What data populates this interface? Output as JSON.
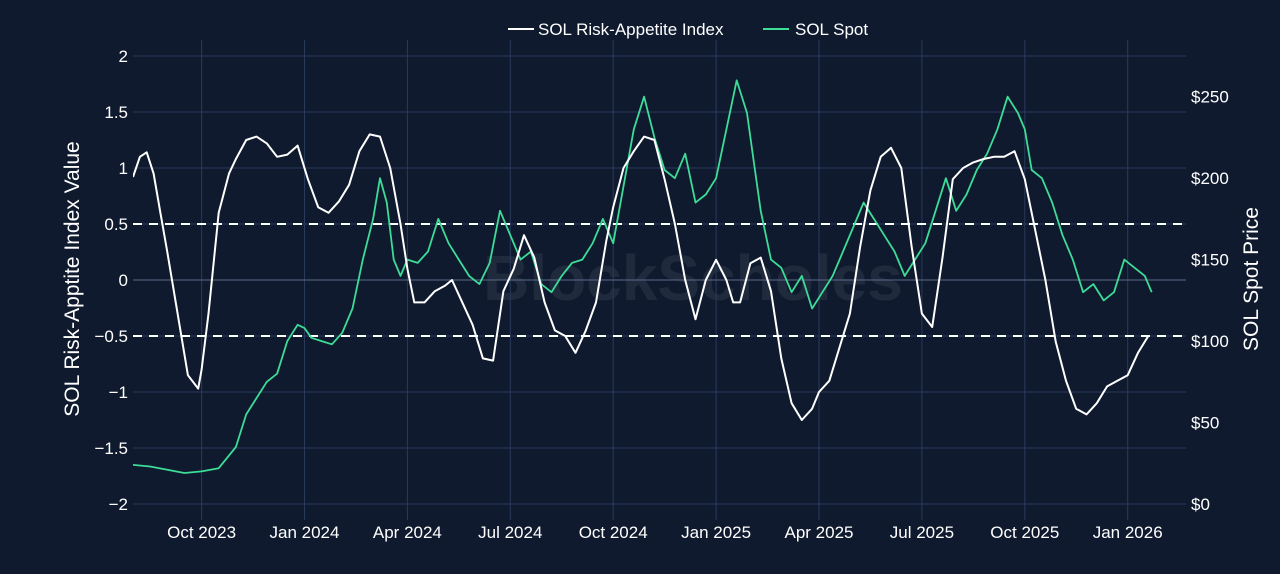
{
  "chart_data": {
    "type": "line",
    "watermark": "BlockScholes",
    "legend_position": "top-center",
    "x_ticks": [
      "Oct 2023",
      "Jan 2024",
      "Apr 2024",
      "Jul 2024",
      "Oct 2024",
      "Jan 2025",
      "Apr 2025",
      "Jul 2025",
      "Oct 2025",
      "Jan 2026"
    ],
    "x_tick_months": [
      3,
      6,
      9,
      12,
      15,
      18,
      21,
      24,
      27,
      30
    ],
    "x_range_months": [
      1.0,
      31.7
    ],
    "y_left": {
      "label": "SOL Risk-Apptite Index Value",
      "range": [
        -2,
        2
      ],
      "ticks": [
        2,
        1.5,
        1,
        0.5,
        0,
        -0.5,
        -1,
        -1.5,
        -2
      ],
      "tick_labels": [
        "2",
        "1.5",
        "1",
        "0.5",
        "0",
        "−0.5",
        "−1",
        "−1.5",
        "−2"
      ]
    },
    "y_right": {
      "label": "SOL Spot Price",
      "range": [
        0,
        275
      ],
      "ticks": [
        250,
        200,
        150,
        100,
        50,
        0
      ],
      "tick_labels": [
        "$250",
        "$200",
        "$150",
        "$100",
        "$50",
        "$0"
      ]
    },
    "reference_lines": [
      0.5,
      -0.5
    ],
    "series": [
      {
        "name": "SOL Risk-Appetite Index",
        "axis": "left",
        "color": "#ffffff",
        "x": [
          1.0,
          1.2,
          1.4,
          1.6,
          1.8,
          2.0,
          2.3,
          2.6,
          2.9,
          3.0,
          3.2,
          3.5,
          3.8,
          4.0,
          4.3,
          4.6,
          4.9,
          5.2,
          5.5,
          5.8,
          6.1,
          6.4,
          6.7,
          7.0,
          7.3,
          7.6,
          7.9,
          8.2,
          8.5,
          8.8,
          9.0,
          9.2,
          9.5,
          9.8,
          10.1,
          10.3,
          10.6,
          10.9,
          11.2,
          11.5,
          11.8,
          12.1,
          12.4,
          12.7,
          13.0,
          13.3,
          13.6,
          13.9,
          14.2,
          14.5,
          14.8,
          15.0,
          15.3,
          15.6,
          15.9,
          16.2,
          16.5,
          16.8,
          17.1,
          17.4,
          17.7,
          18.0,
          18.3,
          18.5,
          18.7,
          19.0,
          19.3,
          19.6,
          19.9,
          20.2,
          20.5,
          20.8,
          21.0,
          21.3,
          21.6,
          21.9,
          22.2,
          22.5,
          22.8,
          23.1,
          23.4,
          23.7,
          24.0,
          24.3,
          24.6,
          24.9,
          25.2,
          25.5,
          25.8,
          26.1,
          26.4,
          26.7,
          27.0,
          27.3,
          27.6,
          27.9,
          28.2,
          28.5,
          28.8,
          29.1,
          29.4,
          29.7,
          30.0,
          30.3,
          30.6
        ],
        "values": [
          0.92,
          1.1,
          1.14,
          0.95,
          0.6,
          0.25,
          -0.3,
          -0.85,
          -0.97,
          -0.8,
          -0.3,
          0.6,
          0.95,
          1.08,
          1.25,
          1.28,
          1.22,
          1.1,
          1.12,
          1.2,
          0.9,
          0.65,
          0.6,
          0.7,
          0.85,
          1.15,
          1.3,
          1.28,
          1.0,
          0.5,
          0.1,
          -0.2,
          -0.2,
          -0.1,
          -0.05,
          0.0,
          -0.2,
          -0.4,
          -0.7,
          -0.72,
          -0.1,
          0.1,
          0.4,
          0.2,
          -0.2,
          -0.45,
          -0.5,
          -0.65,
          -0.45,
          -0.2,
          0.35,
          0.65,
          1.0,
          1.15,
          1.28,
          1.25,
          0.9,
          0.5,
          0.0,
          -0.35,
          0.0,
          0.18,
          0.0,
          -0.2,
          -0.2,
          0.15,
          0.2,
          -0.1,
          -0.7,
          -1.1,
          -1.25,
          -1.15,
          -1.0,
          -0.9,
          -0.6,
          -0.3,
          0.3,
          0.8,
          1.1,
          1.18,
          1.0,
          0.3,
          -0.3,
          -0.42,
          0.2,
          0.9,
          1.0,
          1.05,
          1.08,
          1.1,
          1.1,
          1.15,
          0.9,
          0.45,
          0.0,
          -0.55,
          -0.9,
          -1.15,
          -1.2,
          -1.1,
          -0.95,
          -0.9,
          -0.85,
          -0.65,
          -0.5
        ]
      },
      {
        "name": "SOL Spot",
        "axis": "right",
        "color": "#3ddc97",
        "x": [
          1.0,
          1.5,
          2.0,
          2.5,
          3.0,
          3.5,
          4.0,
          4.3,
          4.6,
          4.9,
          5.2,
          5.5,
          5.8,
          6.0,
          6.2,
          6.5,
          6.8,
          7.1,
          7.4,
          7.7,
          8.0,
          8.2,
          8.4,
          8.6,
          8.8,
          9.0,
          9.3,
          9.6,
          9.9,
          10.2,
          10.5,
          10.8,
          11.1,
          11.4,
          11.7,
          12.0,
          12.3,
          12.6,
          12.9,
          13.2,
          13.5,
          13.8,
          14.1,
          14.4,
          14.7,
          15.0,
          15.3,
          15.6,
          15.9,
          16.2,
          16.5,
          16.8,
          17.1,
          17.4,
          17.7,
          18.0,
          18.3,
          18.6,
          18.9,
          19.1,
          19.3,
          19.6,
          19.9,
          20.2,
          20.5,
          20.8,
          21.1,
          21.4,
          21.7,
          22.0,
          22.3,
          22.6,
          22.9,
          23.2,
          23.5,
          23.8,
          24.1,
          24.4,
          24.7,
          25.0,
          25.3,
          25.6,
          25.9,
          26.2,
          26.5,
          26.8,
          27.0,
          27.2,
          27.5,
          27.8,
          28.1,
          28.4,
          28.7,
          29.0,
          29.3,
          29.6,
          29.9,
          30.2,
          30.5,
          30.7
        ],
        "values": [
          24,
          23,
          21,
          19,
          20,
          22,
          35,
          55,
          65,
          75,
          80,
          100,
          110,
          108,
          102,
          100,
          98,
          105,
          120,
          150,
          175,
          200,
          185,
          150,
          140,
          150,
          148,
          155,
          175,
          160,
          150,
          140,
          135,
          148,
          180,
          165,
          150,
          155,
          135,
          130,
          140,
          148,
          150,
          160,
          175,
          160,
          195,
          230,
          250,
          225,
          205,
          200,
          215,
          185,
          190,
          200,
          230,
          260,
          240,
          210,
          180,
          150,
          145,
          130,
          140,
          120,
          130,
          140,
          155,
          170,
          185,
          175,
          165,
          155,
          140,
          150,
          160,
          180,
          200,
          180,
          190,
          205,
          215,
          230,
          250,
          240,
          230,
          205,
          200,
          185,
          165,
          150,
          130,
          135,
          125,
          130,
          150,
          145,
          140,
          130
        ]
      }
    ]
  }
}
